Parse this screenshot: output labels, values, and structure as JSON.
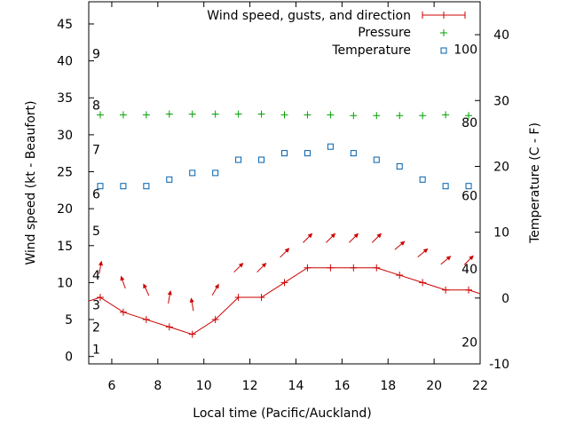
{
  "chart_data": {
    "type": "line",
    "xlabel": "Local time (Pacific/Auckland)",
    "ylabel": "Wind speed (kt - Beaufort)",
    "y2label": "Temperature (C - F)",
    "xlim": [
      5,
      22
    ],
    "ylim": [
      -1,
      48
    ],
    "y2lim": [
      -10,
      45
    ],
    "x_ticks": [
      6,
      8,
      10,
      12,
      14,
      16,
      18,
      20,
      22
    ],
    "y_ticks": [
      0,
      5,
      10,
      15,
      20,
      25,
      30,
      35,
      40,
      45
    ],
    "y2_ticks": [
      -10,
      0,
      10,
      20,
      30,
      40
    ],
    "beaufort_labels": [
      {
        "label": "1",
        "kt": 1
      },
      {
        "label": "2",
        "kt": 4
      },
      {
        "label": "3",
        "kt": 7
      },
      {
        "label": "4",
        "kt": 11
      },
      {
        "label": "5",
        "kt": 17
      },
      {
        "label": "6",
        "kt": 22
      },
      {
        "label": "7",
        "kt": 28
      },
      {
        "label": "8",
        "kt": 34
      },
      {
        "label": "9",
        "kt": 41
      }
    ],
    "fahrenheit_labels": [
      {
        "label": "20",
        "f": 20
      },
      {
        "label": "40",
        "f": 40
      },
      {
        "label": "60",
        "f": 60
      },
      {
        "label": "80",
        "f": 80
      },
      {
        "label": "100",
        "f": 100
      }
    ],
    "legend": {
      "position": "top-right",
      "entries": [
        "Wind speed, gusts, and direction",
        "Pressure",
        "Temperature"
      ]
    },
    "series": [
      {
        "name": "Wind speed, gusts, and direction",
        "color": "#cc0000",
        "axis": "y1",
        "x": [
          5.5,
          6.5,
          7.5,
          8.5,
          9.5,
          10.5,
          11.5,
          12.5,
          13.5,
          14.5,
          15.5,
          16.5,
          17.5,
          18.5,
          19.5,
          20.5,
          21.5
        ],
        "y": [
          8,
          6,
          5,
          4,
          3,
          5,
          8,
          8,
          10,
          12,
          12,
          12,
          12,
          11,
          10,
          9,
          9
        ],
        "line_x_range": [
          5,
          22
        ],
        "line_edge_values": [
          7.5,
          8.5
        ],
        "arrows": [
          {
            "x": 5.5,
            "y": 12,
            "angle_deg": 80
          },
          {
            "x": 6.5,
            "y": 10,
            "angle_deg": 110
          },
          {
            "x": 7.5,
            "y": 9,
            "angle_deg": 115
          },
          {
            "x": 8.5,
            "y": 8,
            "angle_deg": 80
          },
          {
            "x": 9.5,
            "y": 7,
            "angle_deg": 100
          },
          {
            "x": 10.5,
            "y": 9,
            "angle_deg": 60
          },
          {
            "x": 11.5,
            "y": 12,
            "angle_deg": 45
          },
          {
            "x": 12.5,
            "y": 12,
            "angle_deg": 45
          },
          {
            "x": 13.5,
            "y": 14,
            "angle_deg": 45
          },
          {
            "x": 14.5,
            "y": 16,
            "angle_deg": 45
          },
          {
            "x": 15.5,
            "y": 16,
            "angle_deg": 45
          },
          {
            "x": 16.5,
            "y": 16,
            "angle_deg": 45
          },
          {
            "x": 17.5,
            "y": 16,
            "angle_deg": 45
          },
          {
            "x": 18.5,
            "y": 15,
            "angle_deg": 40
          },
          {
            "x": 19.5,
            "y": 14,
            "angle_deg": 40
          },
          {
            "x": 20.5,
            "y": 13,
            "angle_deg": 40
          },
          {
            "x": 21.5,
            "y": 13,
            "angle_deg": 45
          }
        ]
      },
      {
        "name": "Pressure",
        "color": "#00a000",
        "axis": "y1",
        "x": [
          5.5,
          6.5,
          7.5,
          8.5,
          9.5,
          10.5,
          11.5,
          12.5,
          13.5,
          14.5,
          15.5,
          16.5,
          17.5,
          18.5,
          19.5,
          20.5,
          21.5
        ],
        "y": [
          32.7,
          32.7,
          32.7,
          32.8,
          32.8,
          32.8,
          32.8,
          32.8,
          32.7,
          32.7,
          32.7,
          32.6,
          32.6,
          32.6,
          32.6,
          32.7,
          32.6
        ]
      },
      {
        "name": "Temperature",
        "color": "#0060ad",
        "axis": "y2",
        "x": [
          5.5,
          6.5,
          7.5,
          8.5,
          9.5,
          10.5,
          11.5,
          12.5,
          13.5,
          14.5,
          15.5,
          16.5,
          17.5,
          18.5,
          19.5,
          20.5,
          21.5
        ],
        "y": [
          17,
          17,
          17,
          18,
          19,
          19,
          21,
          21,
          22,
          22,
          23,
          22,
          21,
          20,
          18,
          17,
          17
        ]
      }
    ]
  }
}
